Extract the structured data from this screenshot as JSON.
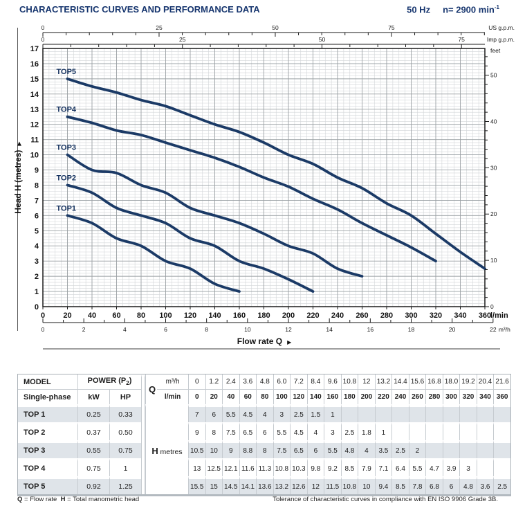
{
  "header": {
    "title": "CHARACTERISTIC CURVES AND PERFORMANCE DATA",
    "frequency": "50 Hz",
    "speed_prefix": "n= 2900 min",
    "speed_sup": "-1"
  },
  "chart_data": {
    "type": "line",
    "title": "",
    "xlabel": "Flow rate Q",
    "ylabel": "Head H  (metres)",
    "arrow": "▶",
    "grid": true,
    "x_axis": {
      "unit": "l/min",
      "min": 0,
      "max": 360,
      "major_step": 20,
      "minor_step": 5,
      "tick_labels": [
        0,
        20,
        40,
        60,
        80,
        100,
        120,
        140,
        160,
        180,
        200,
        220,
        240,
        260,
        280,
        300,
        320,
        340,
        360
      ]
    },
    "x_axis_secondary": {
      "unit": "m³/h",
      "min": 0,
      "max": 22,
      "tick_step": 1,
      "label_step": 2,
      "lmin_per_unit": 16.6667,
      "tick_labels": [
        0,
        2,
        4,
        6,
        8,
        10,
        12,
        14,
        16,
        18,
        20,
        22
      ]
    },
    "top_axis_us": {
      "unit": "US g.p.m.",
      "lmin_per_unit": 3.78541,
      "tick_step": 5,
      "label_step": 25,
      "tick_labels": [
        0,
        25,
        50,
        75
      ]
    },
    "top_axis_imp": {
      "unit": "Imp g.p.m.",
      "lmin_per_unit": 4.54609,
      "tick_step": 5,
      "label_step": 25,
      "tick_labels": [
        0,
        25,
        50,
        75
      ]
    },
    "y_axis": {
      "unit": "metres",
      "min": 0,
      "max": 17,
      "major_step": 1,
      "minor_step": 0.2,
      "tick_labels": [
        0,
        1,
        2,
        3,
        4,
        5,
        6,
        7,
        8,
        9,
        10,
        11,
        12,
        13,
        14,
        15,
        16,
        17
      ]
    },
    "right_axis": {
      "unit": "feet",
      "metres_per_unit": 0.3048,
      "tick_step": 2,
      "label_step": 10,
      "tick_labels": [
        0,
        10,
        20,
        30,
        40,
        50
      ]
    },
    "series": [
      {
        "name": "TOP1",
        "x": [
          20,
          40,
          60,
          80,
          100,
          120,
          140,
          160
        ],
        "y": [
          6,
          5.5,
          4.5,
          4,
          3,
          2.5,
          1.5,
          1
        ]
      },
      {
        "name": "TOP2",
        "x": [
          20,
          40,
          60,
          80,
          100,
          120,
          140,
          160,
          180,
          200,
          220
        ],
        "y": [
          8,
          7.5,
          6.5,
          6,
          5.5,
          4.5,
          4,
          3,
          2.5,
          1.8,
          1
        ]
      },
      {
        "name": "TOP3",
        "x": [
          20,
          40,
          60,
          80,
          100,
          120,
          140,
          160,
          180,
          200,
          220,
          240,
          260
        ],
        "y": [
          10,
          9,
          8.8,
          8,
          7.5,
          6.5,
          6,
          5.5,
          4.8,
          4,
          3.5,
          2.5,
          2
        ]
      },
      {
        "name": "TOP4",
        "x": [
          20,
          40,
          60,
          80,
          100,
          120,
          140,
          160,
          180,
          200,
          220,
          240,
          260,
          280,
          300,
          320
        ],
        "y": [
          12.5,
          12.1,
          11.6,
          11.3,
          10.8,
          10.3,
          9.8,
          9.2,
          8.5,
          7.9,
          7.1,
          6.4,
          5.5,
          4.7,
          3.9,
          3
        ]
      },
      {
        "name": "TOP5",
        "x": [
          20,
          40,
          60,
          80,
          100,
          120,
          140,
          160,
          180,
          200,
          220,
          240,
          260,
          280,
          300,
          320,
          340,
          360
        ],
        "y": [
          15,
          14.5,
          14.1,
          13.6,
          13.2,
          12.6,
          12,
          11.5,
          10.8,
          10,
          9.4,
          8.5,
          7.8,
          6.8,
          6,
          4.8,
          3.6,
          2.5
        ]
      }
    ],
    "colors": {
      "curve": "#1b3a66",
      "grid_minor": "#d2d5d8",
      "grid_major": "#9aa0a4",
      "axis": "#1a1a1a",
      "navy": "#15325f"
    }
  },
  "table": {
    "header": {
      "model": "MODEL",
      "model_sub": "Single-phase",
      "power_pre": "POWER (P",
      "power_sub": "2",
      "power_post": ")",
      "kw": "kW",
      "hp": "HP",
      "q": "Q",
      "q_m3h_label": "m³/h",
      "q_lmin_label": "l/min",
      "h": "H",
      "h_unit": "metres"
    },
    "q_m3h_values": [
      "0",
      "1.2",
      "2.4",
      "3.6",
      "4.8",
      "6.0",
      "7.2",
      "8.4",
      "9.6",
      "10.8",
      "12",
      "13.2",
      "14.4",
      "15.6",
      "16.8",
      "18.0",
      "19.2",
      "20.4",
      "21.6"
    ],
    "q_lmin_values": [
      "0",
      "20",
      "40",
      "60",
      "80",
      "100",
      "120",
      "140",
      "160",
      "180",
      "200",
      "220",
      "240",
      "260",
      "280",
      "300",
      "320",
      "340",
      "360"
    ],
    "rows": [
      {
        "model": "TOP 1",
        "kw": "0.25",
        "hp": "0.33",
        "h": [
          "7",
          "6",
          "5.5",
          "4.5",
          "4",
          "3",
          "2.5",
          "1.5",
          "1",
          "",
          "",
          "",
          "",
          "",
          "",
          "",
          "",
          "",
          ""
        ]
      },
      {
        "model": "TOP 2",
        "kw": "0.37",
        "hp": "0.50",
        "h": [
          "9",
          "8",
          "7.5",
          "6.5",
          "6",
          "5.5",
          "4.5",
          "4",
          "3",
          "2.5",
          "1.8",
          "1",
          "",
          "",
          "",
          "",
          "",
          "",
          ""
        ]
      },
      {
        "model": "TOP 3",
        "kw": "0.55",
        "hp": "0.75",
        "h": [
          "10.5",
          "10",
          "9",
          "8.8",
          "8",
          "7.5",
          "6.5",
          "6",
          "5.5",
          "4.8",
          "4",
          "3.5",
          "2.5",
          "2",
          "",
          "",
          "",
          "",
          ""
        ]
      },
      {
        "model": "TOP 4",
        "kw": "0.75",
        "hp": "1",
        "h": [
          "13",
          "12.5",
          "12.1",
          "11.6",
          "11.3",
          "10.8",
          "10.3",
          "9.8",
          "9.2",
          "8.5",
          "7.9",
          "7.1",
          "6.4",
          "5.5",
          "4.7",
          "3.9",
          "3",
          "",
          ""
        ]
      },
      {
        "model": "TOP 5",
        "kw": "0.92",
        "hp": "1.25",
        "h": [
          "15.5",
          "15",
          "14.5",
          "14.1",
          "13.6",
          "13.2",
          "12.6",
          "12",
          "11.5",
          "10.8",
          "10",
          "9.4",
          "8.5",
          "7.8",
          "6.8",
          "6",
          "4.8",
          "3.6",
          "2.5"
        ]
      }
    ]
  },
  "footnotes": {
    "q_sym": "Q",
    "q_text": " = Flow rate",
    "h_sym": "H",
    "h_text": " = Total manometric head",
    "right": "Tolerance of characteristic curves in compliance with EN ISO 9906 Grade 3B."
  }
}
